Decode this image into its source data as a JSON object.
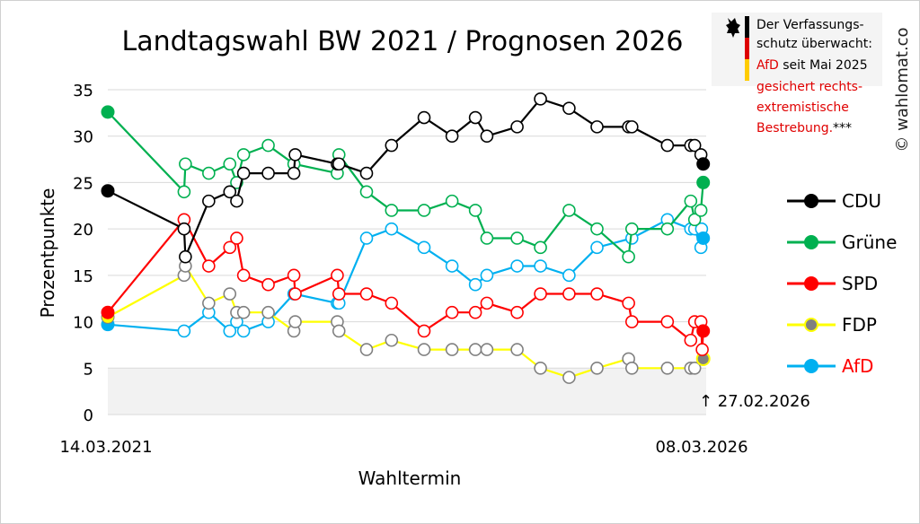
{
  "chart_data": {
    "type": "line",
    "title": "Landtagswahl BW 2021 / Prognosen 2026",
    "xlabel": "Wahltermin",
    "ylabel": "Prozentpunkte",
    "ylim": [
      0,
      35
    ],
    "yticks": [
      0,
      5,
      10,
      15,
      20,
      25,
      30,
      35
    ],
    "xlim": [
      "2021-03-14",
      "2026-03-08"
    ],
    "x_tick_labels": [
      "14.03.2021",
      "08.03.2026"
    ],
    "grid": "horizontal",
    "legend_position": "right",
    "shaded_band": [
      0,
      5
    ],
    "annotation": "↑ 27.02.2026",
    "series": [
      {
        "name": "CDU",
        "color": "#000000",
        "election_2021": {
          "x": "2021-03-14",
          "y": 24.1
        },
        "polls": [
          {
            "x": "2021-03-14",
            "y": 24.1
          },
          {
            "x": "2021-11-01",
            "y": 20
          },
          {
            "x": "2021-11-05",
            "y": 17
          },
          {
            "x": "2022-01-15",
            "y": 23
          },
          {
            "x": "2022-03-20",
            "y": 24
          },
          {
            "x": "2022-04-10",
            "y": 23
          },
          {
            "x": "2022-05-01",
            "y": 26
          },
          {
            "x": "2022-07-15",
            "y": 26
          },
          {
            "x": "2022-10-01",
            "y": 26
          },
          {
            "x": "2022-10-05",
            "y": 28
          },
          {
            "x": "2023-02-10",
            "y": 27
          },
          {
            "x": "2023-02-15",
            "y": 27
          },
          {
            "x": "2023-05-10",
            "y": 26
          },
          {
            "x": "2023-07-25",
            "y": 29
          },
          {
            "x": "2023-11-01",
            "y": 32
          },
          {
            "x": "2024-01-25",
            "y": 30
          },
          {
            "x": "2024-04-05",
            "y": 32
          },
          {
            "x": "2024-05-10",
            "y": 30
          },
          {
            "x": "2024-08-10",
            "y": 31
          },
          {
            "x": "2024-10-20",
            "y": 34
          },
          {
            "x": "2025-01-15",
            "y": 33
          },
          {
            "x": "2025-04-10",
            "y": 31
          },
          {
            "x": "2025-07-15",
            "y": 31
          },
          {
            "x": "2025-07-25",
            "y": 31
          },
          {
            "x": "2025-11-10",
            "y": 29
          },
          {
            "x": "2026-01-20",
            "y": 29
          },
          {
            "x": "2026-02-01",
            "y": 29
          },
          {
            "x": "2026-02-20",
            "y": 28
          }
        ],
        "latest": {
          "x": "2026-02-27",
          "y": 27
        }
      },
      {
        "name": "Grüne",
        "color": "#00B050",
        "election_2021": {
          "x": "2021-03-14",
          "y": 32.6
        },
        "polls": [
          {
            "x": "2021-03-14",
            "y": 32.6
          },
          {
            "x": "2021-11-01",
            "y": 24
          },
          {
            "x": "2021-11-05",
            "y": 27
          },
          {
            "x": "2022-01-15",
            "y": 26
          },
          {
            "x": "2022-03-20",
            "y": 27
          },
          {
            "x": "2022-04-10",
            "y": 25
          },
          {
            "x": "2022-05-01",
            "y": 28
          },
          {
            "x": "2022-07-15",
            "y": 29
          },
          {
            "x": "2022-10-01",
            "y": 27
          },
          {
            "x": "2023-02-10",
            "y": 26
          },
          {
            "x": "2023-02-15",
            "y": 28
          },
          {
            "x": "2023-05-10",
            "y": 24
          },
          {
            "x": "2023-07-25",
            "y": 22
          },
          {
            "x": "2023-11-01",
            "y": 22
          },
          {
            "x": "2024-01-25",
            "y": 23
          },
          {
            "x": "2024-04-05",
            "y": 22
          },
          {
            "x": "2024-05-10",
            "y": 19
          },
          {
            "x": "2024-08-10",
            "y": 19
          },
          {
            "x": "2024-10-20",
            "y": 18
          },
          {
            "x": "2025-01-15",
            "y": 22
          },
          {
            "x": "2025-04-10",
            "y": 20
          },
          {
            "x": "2025-07-15",
            "y": 17
          },
          {
            "x": "2025-07-25",
            "y": 20
          },
          {
            "x": "2025-11-10",
            "y": 20
          },
          {
            "x": "2026-01-20",
            "y": 23
          },
          {
            "x": "2026-02-01",
            "y": 21
          },
          {
            "x": "2026-02-20",
            "y": 22
          }
        ],
        "latest": {
          "x": "2026-02-27",
          "y": 25
        }
      },
      {
        "name": "SPD",
        "color": "#FF0000",
        "election_2021": {
          "x": "2021-03-14",
          "y": 11.0
        },
        "polls": [
          {
            "x": "2021-03-14",
            "y": 11.0
          },
          {
            "x": "2021-11-01",
            "y": 21
          },
          {
            "x": "2022-01-15",
            "y": 16
          },
          {
            "x": "2022-03-20",
            "y": 18
          },
          {
            "x": "2022-04-10",
            "y": 19
          },
          {
            "x": "2022-05-01",
            "y": 15
          },
          {
            "x": "2022-07-15",
            "y": 14
          },
          {
            "x": "2022-10-01",
            "y": 15
          },
          {
            "x": "2022-10-05",
            "y": 13
          },
          {
            "x": "2023-02-10",
            "y": 15
          },
          {
            "x": "2023-02-15",
            "y": 13
          },
          {
            "x": "2023-05-10",
            "y": 13
          },
          {
            "x": "2023-07-25",
            "y": 12
          },
          {
            "x": "2023-11-01",
            "y": 9
          },
          {
            "x": "2024-01-25",
            "y": 11
          },
          {
            "x": "2024-04-05",
            "y": 11
          },
          {
            "x": "2024-05-10",
            "y": 12
          },
          {
            "x": "2024-08-10",
            "y": 11
          },
          {
            "x": "2024-10-20",
            "y": 13
          },
          {
            "x": "2025-01-15",
            "y": 13
          },
          {
            "x": "2025-04-10",
            "y": 13
          },
          {
            "x": "2025-07-15",
            "y": 12
          },
          {
            "x": "2025-07-25",
            "y": 10
          },
          {
            "x": "2025-11-10",
            "y": 10
          },
          {
            "x": "2026-01-20",
            "y": 8
          },
          {
            "x": "2026-02-01",
            "y": 10
          },
          {
            "x": "2026-02-20",
            "y": 10
          },
          {
            "x": "2026-02-24",
            "y": 7
          }
        ],
        "latest": {
          "x": "2026-02-27",
          "y": 9
        }
      },
      {
        "name": "FDP",
        "color": "#FFFF00",
        "marker_color": "#808080",
        "election_2021": {
          "x": "2021-03-14",
          "y": 10.5
        },
        "polls": [
          {
            "x": "2021-03-14",
            "y": 10.5
          },
          {
            "x": "2021-11-01",
            "y": 15
          },
          {
            "x": "2021-11-05",
            "y": 16
          },
          {
            "x": "2022-01-15",
            "y": 12
          },
          {
            "x": "2022-03-20",
            "y": 13
          },
          {
            "x": "2022-04-10",
            "y": 11
          },
          {
            "x": "2022-05-01",
            "y": 11
          },
          {
            "x": "2022-07-15",
            "y": 11
          },
          {
            "x": "2022-10-01",
            "y": 9
          },
          {
            "x": "2022-10-05",
            "y": 10
          },
          {
            "x": "2023-02-10",
            "y": 10
          },
          {
            "x": "2023-02-15",
            "y": 9
          },
          {
            "x": "2023-05-10",
            "y": 7
          },
          {
            "x": "2023-07-25",
            "y": 8
          },
          {
            "x": "2023-11-01",
            "y": 7
          },
          {
            "x": "2024-01-25",
            "y": 7
          },
          {
            "x": "2024-04-05",
            "y": 7
          },
          {
            "x": "2024-05-10",
            "y": 7
          },
          {
            "x": "2024-08-10",
            "y": 7
          },
          {
            "x": "2024-10-20",
            "y": 5
          },
          {
            "x": "2025-01-15",
            "y": 4
          },
          {
            "x": "2025-04-10",
            "y": 5
          },
          {
            "x": "2025-07-15",
            "y": 6
          },
          {
            "x": "2025-07-25",
            "y": 5
          },
          {
            "x": "2025-11-10",
            "y": 5
          },
          {
            "x": "2026-01-20",
            "y": 5
          },
          {
            "x": "2026-02-01",
            "y": 5
          }
        ],
        "latest": {
          "x": "2026-02-27",
          "y": 6
        }
      },
      {
        "name": "AfD",
        "color": "#00B0F0",
        "election_2021": {
          "x": "2021-03-14",
          "y": 9.7
        },
        "polls": [
          {
            "x": "2021-03-14",
            "y": 9.7
          },
          {
            "x": "2021-11-01",
            "y": 9
          },
          {
            "x": "2022-01-15",
            "y": 11
          },
          {
            "x": "2022-03-20",
            "y": 9
          },
          {
            "x": "2022-04-10",
            "y": 10
          },
          {
            "x": "2022-05-01",
            "y": 9
          },
          {
            "x": "2022-07-15",
            "y": 10
          },
          {
            "x": "2022-10-01",
            "y": 13
          },
          {
            "x": "2023-02-10",
            "y": 12
          },
          {
            "x": "2023-02-15",
            "y": 12
          },
          {
            "x": "2023-05-10",
            "y": 19
          },
          {
            "x": "2023-07-25",
            "y": 20
          },
          {
            "x": "2023-11-01",
            "y": 18
          },
          {
            "x": "2024-01-25",
            "y": 16
          },
          {
            "x": "2024-04-05",
            "y": 14
          },
          {
            "x": "2024-05-10",
            "y": 15
          },
          {
            "x": "2024-08-10",
            "y": 16
          },
          {
            "x": "2024-10-20",
            "y": 16
          },
          {
            "x": "2025-01-15",
            "y": 15
          },
          {
            "x": "2025-04-10",
            "y": 18
          },
          {
            "x": "2025-07-25",
            "y": 19
          },
          {
            "x": "2025-11-10",
            "y": 21
          },
          {
            "x": "2026-01-20",
            "y": 20
          },
          {
            "x": "2026-02-01",
            "y": 20
          },
          {
            "x": "2026-02-20",
            "y": 18
          },
          {
            "x": "2026-02-22",
            "y": 20
          }
        ],
        "latest": {
          "x": "2026-02-27",
          "y": 19
        }
      }
    ]
  },
  "notice": {
    "lines": [
      "Der Verfassungs-",
      "schutz überwacht:"
    ],
    "afd_prefix": "AfD",
    "afd_rest": " seit Mai 2025",
    "red_lines": [
      "gesichert rechts-",
      "extremistische"
    ],
    "last_red": "Bestrebung.",
    "last_suffix": "***"
  },
  "watermark": "© wahlomat.co",
  "colors": {
    "grid": "#d9d9d9",
    "band": "#f2f2f2",
    "afd_legend_text": "#FF0000"
  }
}
